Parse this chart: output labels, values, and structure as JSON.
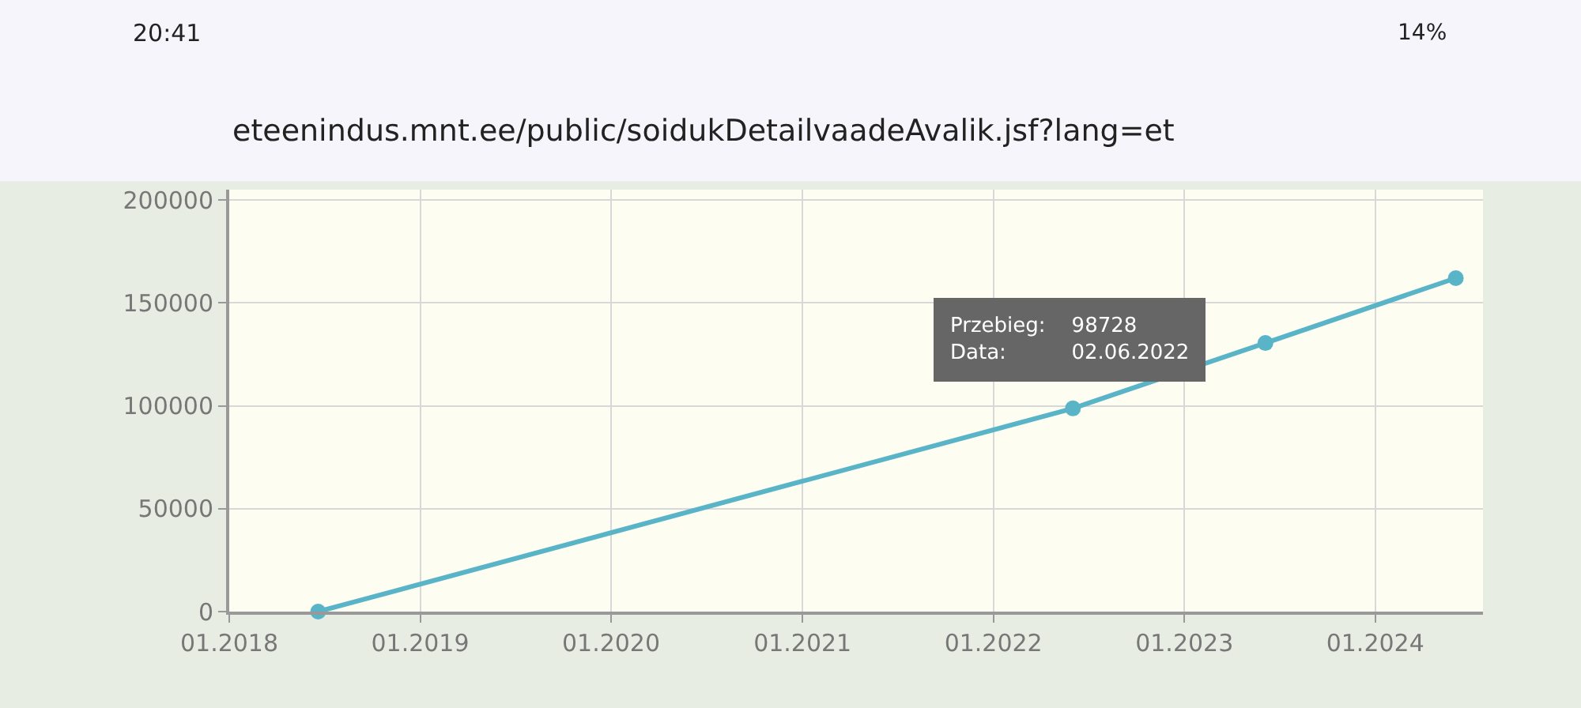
{
  "chart_data": {
    "type": "line",
    "x": [
      "2018-06-20",
      "2022-06-02",
      "2023-06-05",
      "2024-06-03"
    ],
    "series": [
      {
        "color": "#5ab4c8",
        "values": [
          0,
          98728,
          130500,
          162000
        ]
      }
    ],
    "xlim": [
      "2018-01-01",
      "2024-07-25"
    ],
    "xticks": [
      {
        "value": "2018-01-01",
        "label": "01.2018"
      },
      {
        "value": "2019-01-01",
        "label": "01.2019"
      },
      {
        "value": "2020-01-01",
        "label": "01.2020"
      },
      {
        "value": "2021-01-01",
        "label": "01.2021"
      },
      {
        "value": "2022-01-01",
        "label": "01.2022"
      },
      {
        "value": "2023-01-01",
        "label": "01.2023"
      },
      {
        "value": "2024-01-01",
        "label": "01.2024"
      }
    ],
    "ylim": [
      0,
      205000
    ],
    "yticks": [
      0,
      50000,
      100000,
      150000,
      200000
    ],
    "grid": true,
    "marker": "circle",
    "line_style": "solid",
    "annotations": [
      "Przebieg:    98728\nData:          02.06.2022",
      "20:41",
      "14%",
      "eteenindus.mnt.ee/public/soidukDetailvaadeAvalik.jsf?lang=et"
    ]
  }
}
